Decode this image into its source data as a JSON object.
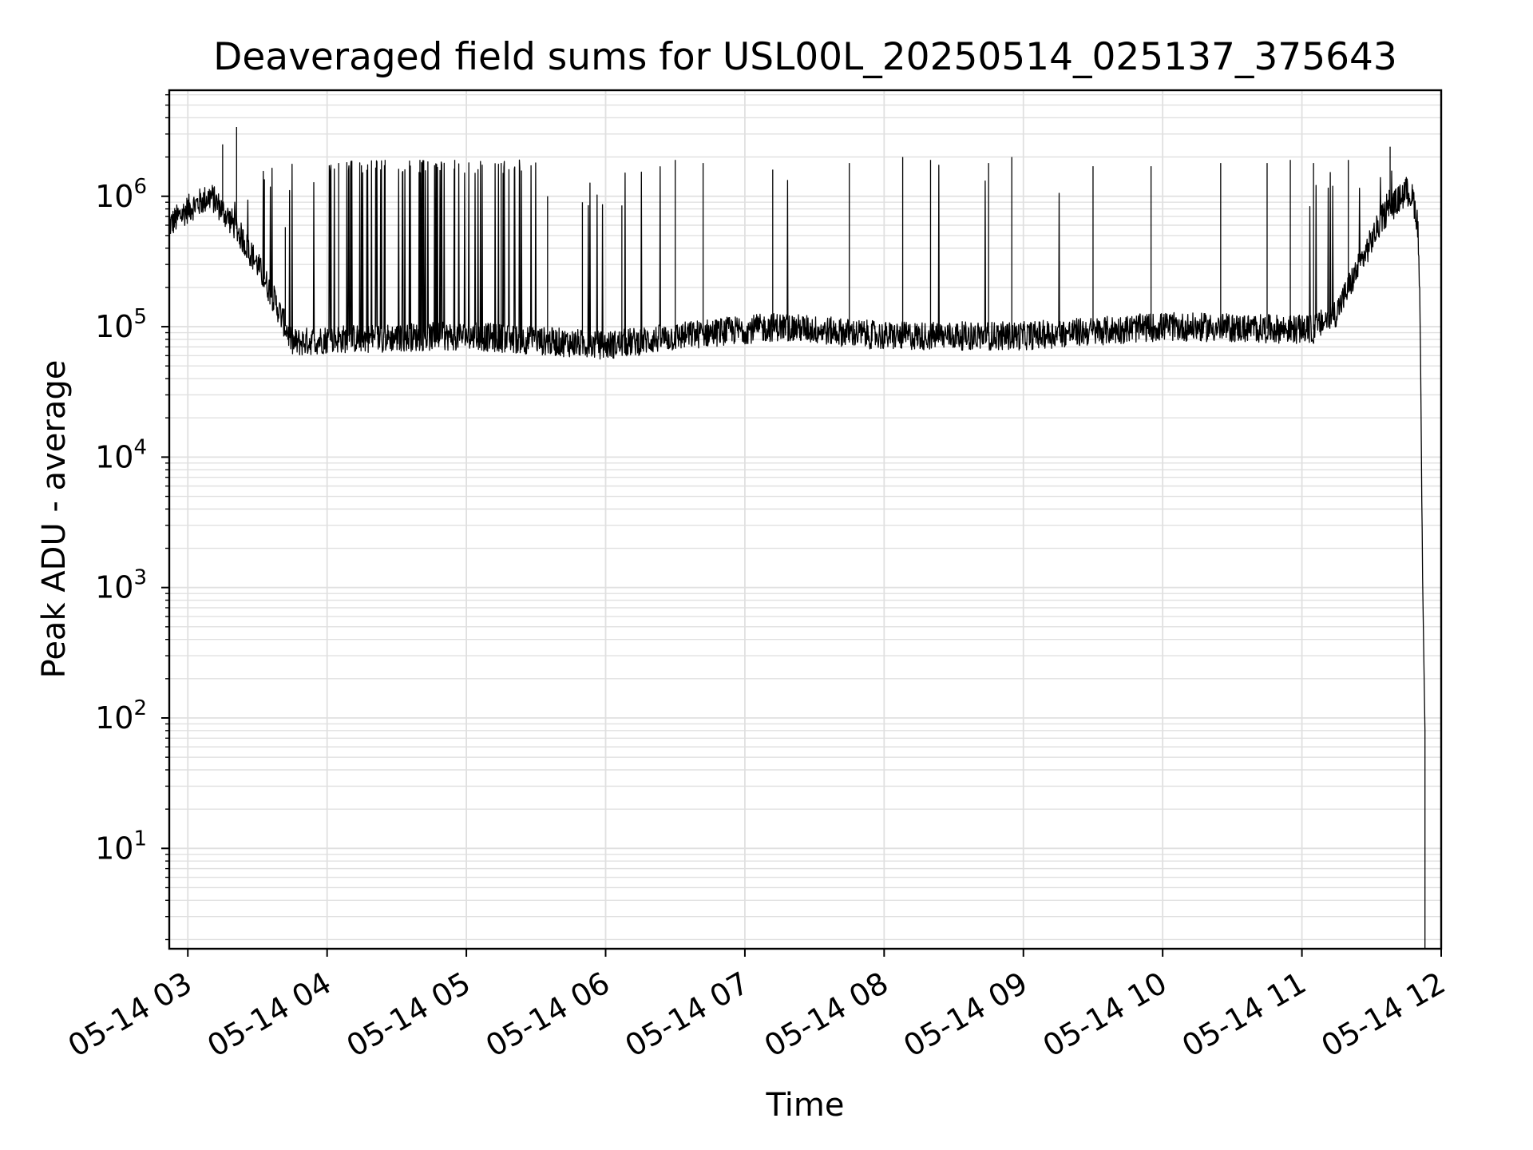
{
  "chart_data": {
    "type": "line",
    "title": "Deaveraged field sums for USL00L_20250514_025137_375643",
    "xlabel": "Time",
    "ylabel": "Peak ADU - average",
    "x_scale": "time",
    "y_scale": "log",
    "xlim": [
      "2025-05-14 02:52",
      "2025-05-14 12:00"
    ],
    "ylim": [
      1.7,
      6500000
    ],
    "grid": true,
    "legend": "none",
    "line_color": "#000000",
    "grid_color": "#e0e0e0",
    "x_ticks": [
      {
        "time": "2025-05-14 03:00",
        "label": "05-14 03"
      },
      {
        "time": "2025-05-14 04:00",
        "label": "05-14 04"
      },
      {
        "time": "2025-05-14 05:00",
        "label": "05-14 05"
      },
      {
        "time": "2025-05-14 06:00",
        "label": "05-14 06"
      },
      {
        "time": "2025-05-14 07:00",
        "label": "05-14 07"
      },
      {
        "time": "2025-05-14 08:00",
        "label": "05-14 08"
      },
      {
        "time": "2025-05-14 09:00",
        "label": "05-14 09"
      },
      {
        "time": "2025-05-14 10:00",
        "label": "05-14 10"
      },
      {
        "time": "2025-05-14 11:00",
        "label": "05-14 11"
      },
      {
        "time": "2025-05-14 12:00",
        "label": "05-14 12"
      }
    ],
    "y_ticks": [
      {
        "value": 10,
        "base": "10",
        "exp": "1"
      },
      {
        "value": 100,
        "base": "10",
        "exp": "2"
      },
      {
        "value": 1000,
        "base": "10",
        "exp": "3"
      },
      {
        "value": 10000,
        "base": "10",
        "exp": "4"
      },
      {
        "value": 100000,
        "base": "10",
        "exp": "5"
      },
      {
        "value": 1000000,
        "base": "10",
        "exp": "6"
      }
    ],
    "series": [
      {
        "baseline": [
          [
            "2025-05-14 02:52",
            600000
          ],
          [
            "2025-05-14 03:00",
            800000
          ],
          [
            "2025-05-14 03:10",
            1000000
          ],
          [
            "2025-05-14 03:20",
            600000
          ],
          [
            "2025-05-14 03:30",
            300000
          ],
          [
            "2025-05-14 03:38",
            150000
          ],
          [
            "2025-05-14 03:45",
            75000
          ],
          [
            "2025-05-14 04:00",
            80000
          ],
          [
            "2025-05-14 05:00",
            85000
          ],
          [
            "2025-05-14 06:00",
            72000
          ],
          [
            "2025-05-14 06:45",
            90000
          ],
          [
            "2025-05-14 07:15",
            100000
          ],
          [
            "2025-05-14 08:00",
            85000
          ],
          [
            "2025-05-14 09:00",
            85000
          ],
          [
            "2025-05-14 10:00",
            100000
          ],
          [
            "2025-05-14 11:05",
            95000
          ],
          [
            "2025-05-14 11:15",
            130000
          ],
          [
            "2025-05-14 11:25",
            300000
          ],
          [
            "2025-05-14 11:35",
            700000
          ],
          [
            "2025-05-14 11:45",
            1100000
          ],
          [
            "2025-05-14 11:48",
            950000
          ],
          [
            "2025-05-14 11:50",
            600000
          ],
          [
            "2025-05-14 11:51",
            100000
          ],
          [
            "2025-05-14 11:52",
            1200
          ],
          [
            "2025-05-14 11:53",
            80
          ],
          [
            "2025-05-14 11:53",
            1.7
          ]
        ],
        "spikes": [
          [
            "2025-05-14 03:15",
            2500000
          ],
          [
            "2025-05-14 03:21",
            3400000
          ],
          [
            "2025-05-14 03:33",
            1350000
          ],
          [
            "2025-05-14 03:42",
            580000
          ],
          [
            "2025-05-14 04:05",
            1800000
          ],
          [
            "2025-05-14 04:25",
            1900000
          ],
          [
            "2025-05-14 04:40",
            1900000
          ],
          [
            "2025-05-14 04:55",
            1900000
          ],
          [
            "2025-05-14 05:15",
            1800000
          ],
          [
            "2025-05-14 05:35",
            1000000
          ],
          [
            "2025-05-14 05:50",
            900000
          ],
          [
            "2025-05-14 06:07",
            850000
          ],
          [
            "2025-05-14 06:30",
            1900000
          ],
          [
            "2025-05-14 06:42",
            1800000
          ],
          [
            "2025-05-14 07:12",
            1600000
          ],
          [
            "2025-05-14 07:45",
            1800000
          ],
          [
            "2025-05-14 08:08",
            2000000
          ],
          [
            "2025-05-14 08:20",
            1900000
          ],
          [
            "2025-05-14 08:45",
            1800000
          ],
          [
            "2025-05-14 08:55",
            2000000
          ],
          [
            "2025-05-14 09:30",
            1700000
          ],
          [
            "2025-05-14 09:55",
            1700000
          ],
          [
            "2025-05-14 10:25",
            1800000
          ],
          [
            "2025-05-14 10:45",
            1800000
          ],
          [
            "2025-05-14 10:55",
            1900000
          ],
          [
            "2025-05-14 11:05",
            1800000
          ],
          [
            "2025-05-14 11:20",
            1900000
          ],
          [
            "2025-05-14 11:38",
            2400000
          ]
        ]
      }
    ]
  }
}
